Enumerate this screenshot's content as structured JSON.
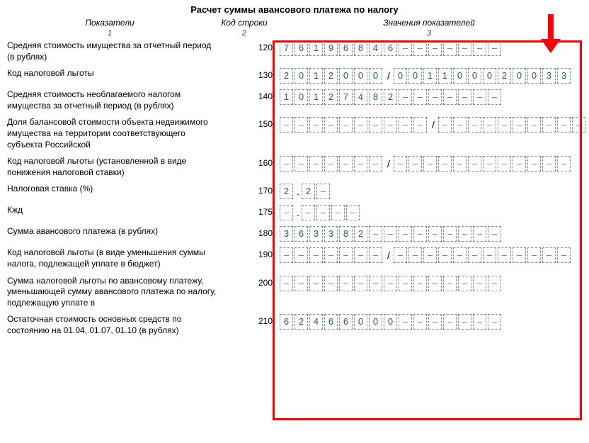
{
  "title": "Расчет суммы авансового платежа по налогу",
  "headers": {
    "h1": "Показатели",
    "h2": "Код строки",
    "h3": "Значения показателей",
    "s1": "1",
    "s2": "2",
    "s3": "3"
  },
  "rows": [
    {
      "label": "Средняя стоимость имущества за отчетный период (в рублях)",
      "code": "120",
      "groups": [
        {
          "len": 15,
          "value": "76196846"
        }
      ]
    },
    {
      "label": "Код налоговой льготы",
      "code": "130",
      "groups": [
        {
          "len": 7,
          "value": "2012000"
        },
        {
          "sep": "/"
        },
        {
          "len": 12,
          "value": "001100020033"
        }
      ]
    },
    {
      "label": "Средняя стоимость необлагаемого налогом имущества за отчетный период (в рублях)",
      "code": "140",
      "groups": [
        {
          "len": 15,
          "value": "10127482"
        }
      ]
    },
    {
      "label": "Доля балансовой стоимости объекта недвижимого имущества на территории соответствующего субъекта Российской",
      "code": "150",
      "groups": [
        {
          "len": 10,
          "value": ""
        },
        {
          "sep": "/"
        },
        {
          "len": 10,
          "value": ""
        }
      ]
    },
    {
      "label": "Код налоговой льготы (установленной в виде понижения налоговой ставки)",
      "code": "160",
      "groups": [
        {
          "len": 7,
          "value": ""
        },
        {
          "sep": "/"
        },
        {
          "len": 12,
          "value": ""
        }
      ]
    },
    {
      "label": "Налоговая ставка (%)",
      "code": "170",
      "groups": [
        {
          "len": 1,
          "value": "2"
        },
        {
          "dot": "."
        },
        {
          "len": 1,
          "value": "2"
        },
        {
          "len": 1,
          "value": ""
        }
      ]
    },
    {
      "label": "Кжд",
      "code": "175",
      "groups": [
        {
          "len": 1,
          "value": ""
        },
        {
          "dot": "."
        },
        {
          "len": 1,
          "value": ""
        },
        {
          "len": 1,
          "value": ""
        },
        {
          "len": 1,
          "value": ""
        },
        {
          "len": 1,
          "value": ""
        }
      ]
    },
    {
      "label": "Сумма авансового платежа (в рублях)",
      "code": "180",
      "groups": [
        {
          "len": 15,
          "value": "363382"
        }
      ]
    },
    {
      "label": "Код налоговой льготы (в виде уменьшения суммы налога, подлежащей уплате в бюджет)",
      "code": "190",
      "groups": [
        {
          "len": 7,
          "value": ""
        },
        {
          "sep": "/"
        },
        {
          "len": 12,
          "value": ""
        }
      ]
    },
    {
      "label": "Сумма налоговой льготы по авансовому платежу, уменьшающей сумму авансового платежа по налогу, подлежащую уплате в",
      "code": "200",
      "groups": [
        {
          "len": 15,
          "value": ""
        }
      ]
    },
    {
      "label": "Остаточная стоимость основных средств по состоянию на 01.04, 01.07, 01.10 (в рублях)",
      "code": "210",
      "groups": [
        {
          "len": 15,
          "value": "62466000"
        }
      ]
    }
  ],
  "style": {
    "arrow_color": "#ff0000",
    "box_color": "#ff0000",
    "digit_color": "#1060a0",
    "dash_color": "#777777"
  }
}
